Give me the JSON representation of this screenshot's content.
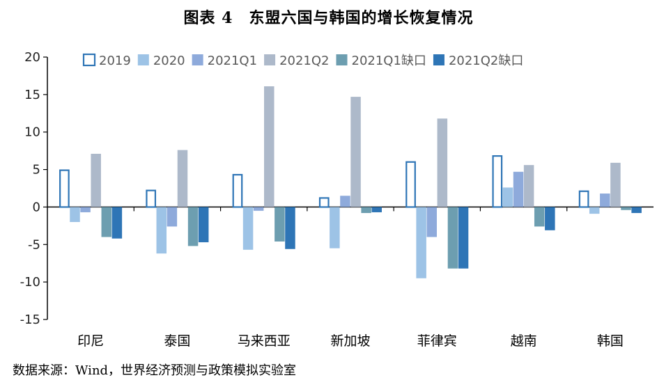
{
  "title": "图表 4　东盟六国与韩国的增长恢复情况",
  "source": "数据来源：Wind，世界经济预测与政策模拟实验室",
  "chart_data": {
    "type": "bar",
    "title": "图表 4　东盟六国与韩国的增长恢复情况",
    "xlabel": "",
    "ylabel": "",
    "ylim": [
      -15,
      20
    ],
    "yticks": [
      20,
      15,
      10,
      5,
      0,
      -5,
      -10,
      -15
    ],
    "legend_position": "top",
    "categories": [
      "印尼",
      "泰国",
      "马来西亚",
      "新加坡",
      "菲律宾",
      "越南",
      "韩国"
    ],
    "series": [
      {
        "name": "2019",
        "values": [
          5.0,
          2.3,
          4.4,
          1.3,
          6.1,
          6.9,
          2.2
        ],
        "fill": "#ffffff",
        "stroke": "#2e75b6"
      },
      {
        "name": "2020",
        "values": [
          -2.0,
          -6.2,
          -5.7,
          -5.5,
          -9.5,
          2.6,
          -0.9
        ],
        "fill": "#9dc3e6",
        "stroke": "#9dc3e6"
      },
      {
        "name": "2021Q1",
        "values": [
          -0.7,
          -2.6,
          -0.5,
          1.5,
          -4.0,
          4.7,
          1.8
        ],
        "fill": "#8eaadb",
        "stroke": "#8eaadb"
      },
      {
        "name": "2021Q2",
        "values": [
          7.1,
          7.6,
          16.1,
          14.7,
          11.8,
          5.6,
          5.9
        ],
        "fill": "#adb9ca",
        "stroke": "#adb9ca"
      },
      {
        "name": "2021Q1缺口",
        "values": [
          -4.0,
          -5.2,
          -4.6,
          -0.8,
          -8.2,
          -2.6,
          -0.4
        ],
        "fill": "#6d9eb0",
        "stroke": "#6d9eb0"
      },
      {
        "name": "2021Q2缺口",
        "values": [
          -4.2,
          -4.7,
          -5.6,
          -0.7,
          -8.2,
          -3.1,
          -0.8
        ],
        "fill": "#2e75b6",
        "stroke": "#2e75b6"
      }
    ]
  }
}
